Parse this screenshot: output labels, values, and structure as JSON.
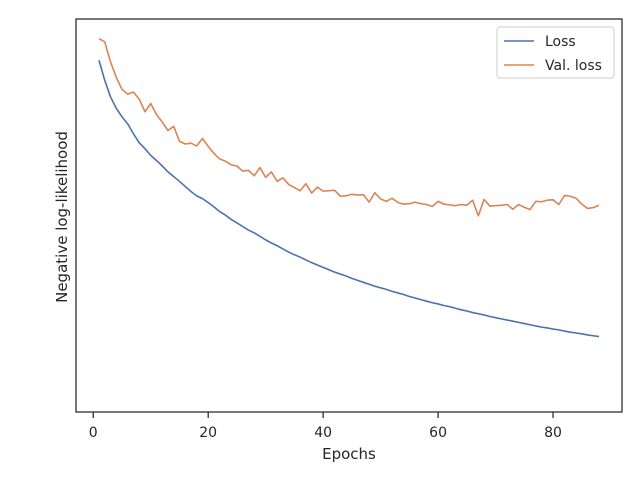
{
  "chart_data": {
    "type": "line",
    "title": "",
    "xlabel": "Epochs",
    "ylabel": "Negative log-likelihood",
    "xlim": [
      -3,
      92
    ],
    "ylim": [
      0,
      100
    ],
    "x_ticks": [
      0,
      20,
      40,
      60,
      80
    ],
    "y_tick_labels_shown": false,
    "grid": false,
    "legend_position": "top-right",
    "x": [
      1,
      2,
      3,
      4,
      5,
      6,
      7,
      8,
      9,
      10,
      11,
      12,
      13,
      14,
      15,
      16,
      17,
      18,
      19,
      20,
      21,
      22,
      23,
      24,
      25,
      26,
      27,
      28,
      29,
      30,
      31,
      32,
      33,
      34,
      35,
      36,
      37,
      38,
      39,
      40,
      41,
      42,
      43,
      44,
      45,
      46,
      47,
      48,
      49,
      50,
      51,
      52,
      53,
      54,
      55,
      56,
      57,
      58,
      59,
      60,
      61,
      62,
      63,
      64,
      65,
      66,
      67,
      68,
      69,
      70,
      71,
      72,
      73,
      74,
      75,
      76,
      77,
      78,
      79,
      80,
      81,
      82,
      83,
      84,
      85,
      86,
      87,
      88
    ],
    "series": [
      {
        "name": "Loss",
        "color": "#4c72b0",
        "values": [
          89.5,
          84.4,
          80.2,
          77.3,
          75.1,
          73.3,
          70.8,
          68.5,
          67.0,
          65.3,
          64.0,
          62.6,
          61.1,
          59.9,
          58.7,
          57.4,
          56.1,
          55.0,
          54.3,
          53.3,
          52.2,
          51.0,
          50.1,
          49.0,
          48.1,
          47.2,
          46.3,
          45.6,
          44.7,
          43.8,
          43.0,
          42.3,
          41.5,
          40.7,
          40.0,
          39.4,
          38.7,
          38.0,
          37.4,
          36.8,
          36.2,
          35.6,
          35.1,
          34.6,
          34.0,
          33.5,
          33.0,
          32.5,
          32.0,
          31.6,
          31.2,
          30.7,
          30.3,
          29.9,
          29.4,
          29.0,
          28.6,
          28.2,
          27.8,
          27.5,
          27.1,
          26.8,
          26.4,
          26.0,
          25.7,
          25.3,
          25.0,
          24.7,
          24.3,
          24.0,
          23.7,
          23.4,
          23.1,
          22.8,
          22.5,
          22.2,
          21.9,
          21.6,
          21.4,
          21.1,
          20.9,
          20.6,
          20.3,
          20.1,
          19.9,
          19.6,
          19.4,
          19.2
        ]
      },
      {
        "name": "Val. loss",
        "color": "#dd8452",
        "values": [
          95.0,
          94.2,
          89.1,
          85.2,
          82.1,
          80.9,
          81.4,
          79.6,
          76.4,
          78.5,
          75.7,
          73.8,
          71.6,
          72.7,
          68.9,
          68.2,
          68.4,
          67.7,
          69.6,
          67.6,
          65.8,
          64.4,
          63.8,
          62.9,
          62.6,
          61.3,
          61.5,
          60.1,
          62.2,
          59.7,
          61.1,
          58.7,
          59.6,
          57.9,
          57.1,
          56.3,
          58.1,
          55.7,
          57.2,
          56.2,
          56.3,
          56.4,
          54.9,
          55.0,
          55.4,
          55.2,
          55.3,
          53.4,
          55.8,
          54.2,
          53.6,
          54.4,
          53.3,
          52.9,
          53.0,
          53.4,
          53.0,
          52.8,
          52.3,
          53.6,
          52.9,
          52.7,
          52.5,
          52.8,
          52.6,
          53.9,
          49.9,
          54.1,
          52.4,
          52.5,
          52.6,
          52.8,
          51.6,
          52.8,
          52.1,
          51.5,
          53.6,
          53.5,
          53.9,
          54.0,
          52.8,
          55.1,
          54.9,
          54.4,
          52.9,
          51.8,
          52.0,
          52.6
        ]
      }
    ]
  }
}
